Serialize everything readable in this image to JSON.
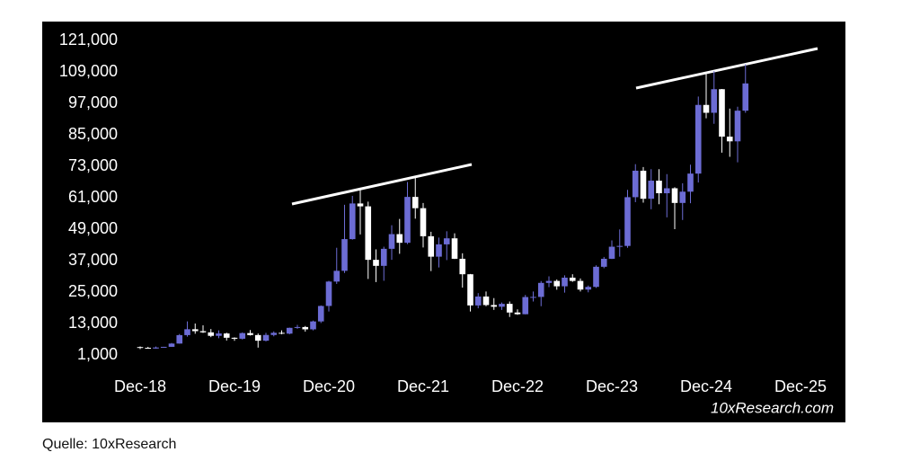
{
  "chart_data": {
    "type": "candlestick",
    "categories": [
      "Dec-18",
      null,
      null,
      null,
      null,
      null,
      null,
      null,
      null,
      null,
      null,
      null,
      "Dec-19",
      null,
      null,
      null,
      null,
      null,
      null,
      null,
      null,
      null,
      null,
      null,
      "Dec-20",
      null,
      null,
      null,
      null,
      null,
      null,
      null,
      null,
      null,
      null,
      null,
      "Dec-21",
      null,
      null,
      null,
      null,
      null,
      null,
      null,
      null,
      null,
      null,
      null,
      "Dec-22",
      null,
      null,
      null,
      null,
      null,
      null,
      null,
      null,
      null,
      null,
      null,
      "Dec-23",
      null,
      null,
      null,
      null,
      null,
      null,
      null,
      null,
      null,
      null,
      null,
      "Dec-24",
      null,
      null,
      null,
      null,
      null,
      null,
      null,
      null,
      null,
      null,
      null,
      "Dec-25"
    ],
    "open": [
      4017,
      3742,
      3457,
      3854,
      4105,
      5351,
      8574,
      10817,
      10085,
      9630,
      8293,
      9199,
      7569,
      7194,
      9350,
      8600,
      6440,
      8630,
      9450,
      9140,
      11350,
      11660,
      10780,
      13800,
      19700,
      29000,
      33100,
      45200,
      58800,
      57700,
      37300,
      35000,
      41500,
      47100,
      43800,
      61300,
      57000,
      46300,
      38500,
      43200,
      45500,
      37700,
      31800,
      19900,
      23300,
      20050,
      19400,
      20500,
      17200,
      16550,
      23100,
      23150,
      28500,
      29250,
      27200,
      30500,
      29250,
      25950,
      26970,
      34650,
      37700,
      42300,
      42600,
      61200,
      71300,
      60600,
      67500,
      62700,
      64600,
      59000,
      63300,
      70200,
      96400,
      93400,
      102400,
      84300,
      82500,
      94200,
      null,
      null,
      null,
      null,
      null,
      null,
      null
    ],
    "high": [
      4236,
      4109,
      4210,
      4120,
      5600,
      9000,
      13800,
      13000,
      12300,
      10900,
      10400,
      9500,
      7750,
      9600,
      10500,
      9200,
      9450,
      10000,
      10400,
      11450,
      12470,
      12050,
      14100,
      19900,
      29300,
      41900,
      58300,
      61700,
      64800,
      59500,
      41300,
      42300,
      50500,
      52900,
      67000,
      69000,
      59000,
      48000,
      45800,
      48200,
      47400,
      39800,
      31900,
      24600,
      25200,
      22700,
      21000,
      21400,
      18400,
      23900,
      25200,
      29200,
      31000,
      29800,
      31400,
      31800,
      30200,
      27500,
      35200,
      38400,
      44700,
      48900,
      64000,
      73800,
      72700,
      71900,
      71900,
      70000,
      65000,
      66500,
      73600,
      99600,
      108300,
      109300,
      102500,
      95000,
      95700,
      111900,
      null,
      null,
      null,
      null,
      null,
      null,
      null
    ],
    "low": [
      3218,
      3400,
      3400,
      3800,
      4100,
      5300,
      8000,
      9100,
      9400,
      7800,
      7400,
      6500,
      6400,
      6900,
      8400,
      3800,
      6200,
      8100,
      8900,
      8900,
      11000,
      9900,
      10400,
      13200,
      17600,
      28100,
      32300,
      45000,
      47000,
      30000,
      28800,
      29300,
      37300,
      39600,
      43300,
      53000,
      42000,
      33000,
      34400,
      37200,
      37600,
      26700,
      17600,
      18800,
      19600,
      18200,
      18200,
      15500,
      16300,
      16500,
      21400,
      19600,
      26900,
      25900,
      24800,
      28900,
      25200,
      24900,
      26600,
      34100,
      37600,
      38500,
      41900,
      59300,
      59100,
      56600,
      58500,
      53500,
      49000,
      52500,
      58900,
      66800,
      91300,
      89200,
      78200,
      76600,
      74500,
      93400,
      null,
      null,
      null,
      null,
      null,
      null,
      null
    ],
    "close": [
      3742,
      3457,
      3854,
      4105,
      5351,
      8574,
      10817,
      10085,
      9630,
      8293,
      9199,
      7569,
      7194,
      9350,
      8600,
      6440,
      8630,
      9450,
      9140,
      11350,
      11660,
      10780,
      13800,
      19700,
      29000,
      33100,
      45200,
      58800,
      57700,
      37300,
      35000,
      41500,
      47100,
      43800,
      61300,
      57000,
      46300,
      38500,
      43200,
      45500,
      37700,
      31800,
      19900,
      23300,
      20050,
      19400,
      20500,
      17200,
      16550,
      23100,
      23150,
      28500,
      29250,
      27200,
      30500,
      29250,
      25950,
      26970,
      34650,
      37700,
      42300,
      42600,
      61200,
      71300,
      60600,
      67500,
      62700,
      64600,
      59000,
      63300,
      70200,
      96400,
      93400,
      102400,
      84300,
      82500,
      94200,
      104600,
      null,
      null,
      null,
      null,
      null,
      null,
      null
    ],
    "up_color": "#6c6cd4",
    "down_color": "#ffffff",
    "ylim": [
      1000,
      121000
    ],
    "yticks": [
      {
        "value": 1000,
        "label": "1,000"
      },
      {
        "value": 13000,
        "label": "13,000"
      },
      {
        "value": 25000,
        "label": "25,000"
      },
      {
        "value": 37000,
        "label": "37,000"
      },
      {
        "value": 49000,
        "label": "49,000"
      },
      {
        "value": 61000,
        "label": "61,000"
      },
      {
        "value": 73000,
        "label": "73,000"
      },
      {
        "value": 85000,
        "label": "85,000"
      },
      {
        "value": 97000,
        "label": "97,000"
      },
      {
        "value": 109000,
        "label": "109,000"
      },
      {
        "value": 121000,
        "label": "121,000"
      }
    ],
    "watermark": "10xResearch.com",
    "source": "Quelle: 10xResearch"
  }
}
